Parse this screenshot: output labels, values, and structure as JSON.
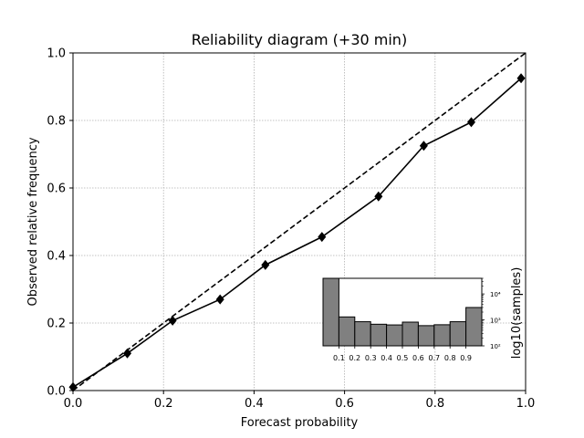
{
  "chart_data": [
    {
      "type": "line",
      "title": "Reliability diagram (+30 min)",
      "xlabel": "Forecast probability",
      "ylabel": "Observed relative frequency",
      "xlim": [
        0,
        1
      ],
      "ylim": [
        0,
        1
      ],
      "grid": true,
      "x_ticks": [
        "0.0",
        "0.2",
        "0.4",
        "0.6",
        "0.8",
        "1.0"
      ],
      "y_ticks": [
        "0.0",
        "0.2",
        "0.4",
        "0.6",
        "0.8",
        "1.0"
      ],
      "reference_line": {
        "x": [
          0,
          1
        ],
        "y": [
          0,
          1
        ],
        "style": "dashed"
      },
      "series": [
        {
          "x": [
            0.0,
            0.12,
            0.22,
            0.325,
            0.425,
            0.55,
            0.675,
            0.775,
            0.88,
            0.99
          ],
          "y": [
            0.01,
            0.11,
            0.207,
            0.27,
            0.372,
            0.455,
            0.575,
            0.725,
            0.795,
            0.925
          ],
          "color": "#000000",
          "marker": "diamond"
        }
      ]
    },
    {
      "type": "bar",
      "ylabel": "log10(samples)",
      "log_scale": true,
      "ylim": [
        100,
        40000
      ],
      "x_ticks": [
        "0.1",
        "0.2",
        "0.3",
        "0.4",
        "0.5",
        "0.6",
        "0.7",
        "0.8",
        "0.9"
      ],
      "y_ticks": [
        "10²",
        "10³",
        "10⁴"
      ],
      "bin_edges": [
        0.0,
        0.1,
        0.2,
        0.3,
        0.4,
        0.5,
        0.6,
        0.7,
        0.8,
        0.9,
        1.0
      ],
      "values": [
        40000,
        1300,
        850,
        680,
        640,
        820,
        600,
        650,
        850,
        3000
      ],
      "color": "#808080"
    }
  ]
}
